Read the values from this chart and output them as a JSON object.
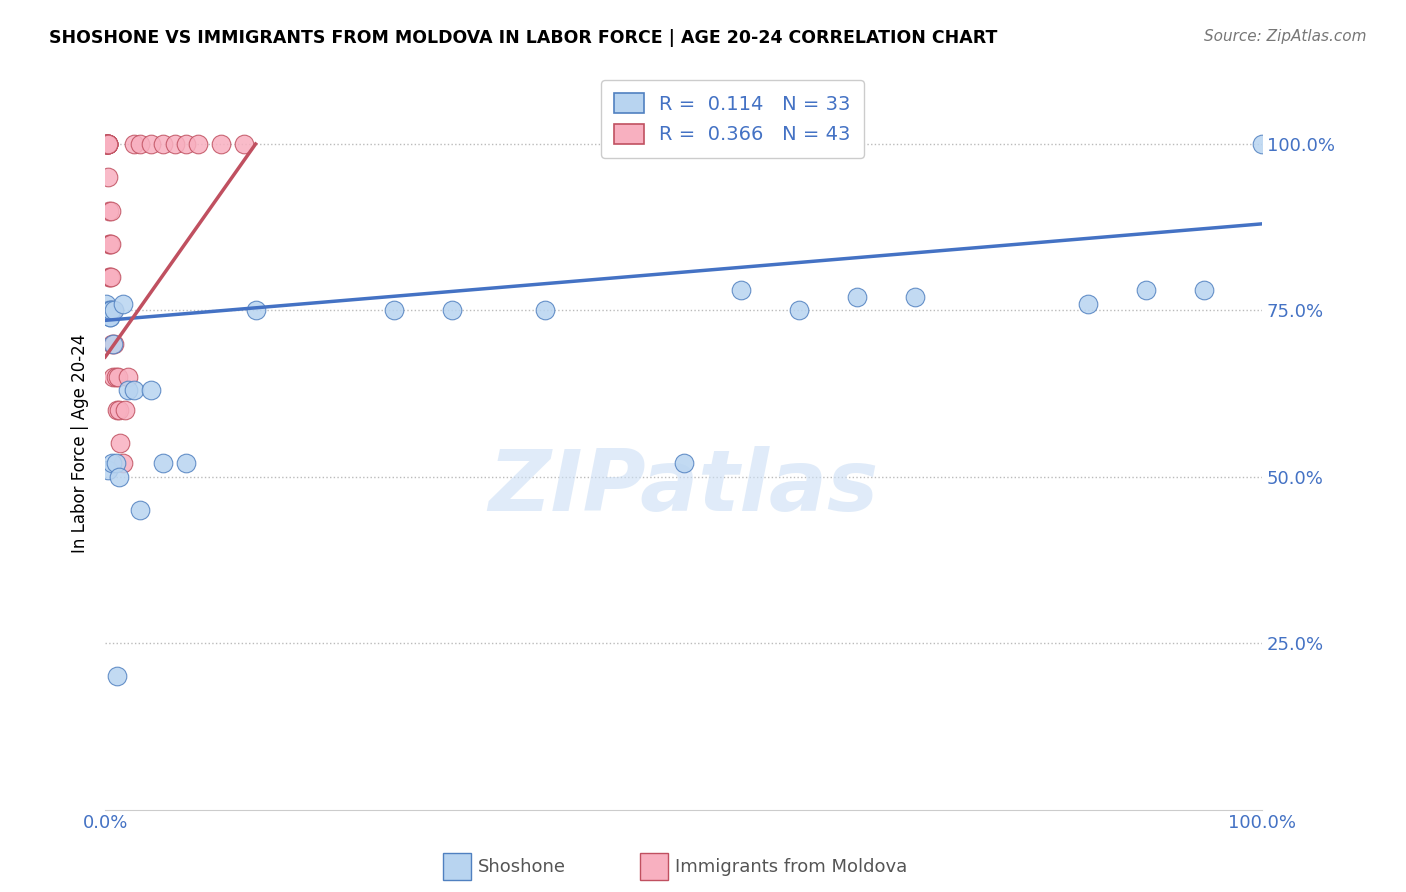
{
  "title": "SHOSHONE VS IMMIGRANTS FROM MOLDOVA IN LABOR FORCE | AGE 20-24 CORRELATION CHART",
  "source": "Source: ZipAtlas.com",
  "ylabel_label": "In Labor Force | Age 20-24",
  "legend_label1": "Shoshone",
  "legend_label2": "Immigrants from Moldova",
  "R1": 0.114,
  "N1": 33,
  "R2": 0.366,
  "N2": 43,
  "color1": "#b8d4f0",
  "color2": "#f8b0c0",
  "line_color1": "#4472c4",
  "line_color2": "#c05060",
  "edge_color1": "#5080c0",
  "edge_color2": "#c05060",
  "text_color": "#4472c4",
  "axis_text_color": "#4472c4",
  "watermark_color": "#ccdff5",
  "shoshone_x": [
    0.001,
    0.002,
    0.003,
    0.004,
    0.004,
    0.005,
    0.005,
    0.006,
    0.007,
    0.008,
    0.009,
    0.01,
    0.012,
    0.015,
    0.02,
    0.025,
    0.03,
    0.04,
    0.05,
    0.07,
    0.13,
    0.25,
    0.3,
    0.38,
    0.5,
    0.55,
    0.6,
    0.65,
    0.7,
    0.85,
    0.9,
    0.95,
    1.0
  ],
  "shoshone_y": [
    0.76,
    0.51,
    0.75,
    0.74,
    0.74,
    0.75,
    0.75,
    0.52,
    0.7,
    0.75,
    0.52,
    0.2,
    0.5,
    0.76,
    0.63,
    0.63,
    0.45,
    0.63,
    0.52,
    0.52,
    0.75,
    0.75,
    0.75,
    0.75,
    0.52,
    0.78,
    0.75,
    0.77,
    0.77,
    0.76,
    0.78,
    0.78,
    1.0
  ],
  "moldova_x": [
    0.001,
    0.001,
    0.001,
    0.001,
    0.001,
    0.002,
    0.002,
    0.002,
    0.002,
    0.002,
    0.002,
    0.002,
    0.002,
    0.003,
    0.003,
    0.003,
    0.004,
    0.004,
    0.005,
    0.005,
    0.005,
    0.006,
    0.006,
    0.007,
    0.007,
    0.008,
    0.009,
    0.01,
    0.011,
    0.012,
    0.013,
    0.015,
    0.017,
    0.02,
    0.025,
    0.03,
    0.04,
    0.05,
    0.06,
    0.07,
    0.08,
    0.1,
    0.12
  ],
  "moldova_y": [
    1.0,
    1.0,
    1.0,
    1.0,
    1.0,
    1.0,
    1.0,
    1.0,
    1.0,
    1.0,
    1.0,
    1.0,
    0.95,
    0.9,
    0.85,
    0.8,
    0.85,
    0.8,
    0.9,
    0.85,
    0.8,
    0.75,
    0.7,
    0.75,
    0.65,
    0.7,
    0.65,
    0.6,
    0.65,
    0.6,
    0.55,
    0.52,
    0.6,
    0.65,
    1.0,
    1.0,
    1.0,
    1.0,
    1.0,
    1.0,
    1.0,
    1.0,
    1.0
  ],
  "xlim": [
    0.0,
    1.0
  ],
  "ylim": [
    0.0,
    1.1
  ],
  "xtick_vals": [
    0.0,
    0.1,
    0.2,
    0.3,
    0.4,
    0.5,
    0.6,
    0.7,
    0.8,
    0.9,
    1.0
  ],
  "xtick_labels": [
    "0.0%",
    "",
    "",
    "",
    "",
    "",
    "",
    "",
    "",
    "",
    "100.0%"
  ],
  "ytick_vals": [
    0.25,
    0.5,
    0.75,
    1.0
  ],
  "ytick_labels": [
    "25.0%",
    "50.0%",
    "75.0%",
    "100.0%"
  ],
  "blue_line_x0": 0.0,
  "blue_line_y0": 0.735,
  "blue_line_x1": 1.0,
  "blue_line_y1": 0.88,
  "pink_line_x0": 0.0,
  "pink_line_y0": 0.68,
  "pink_line_x1": 0.13,
  "pink_line_y1": 1.0
}
